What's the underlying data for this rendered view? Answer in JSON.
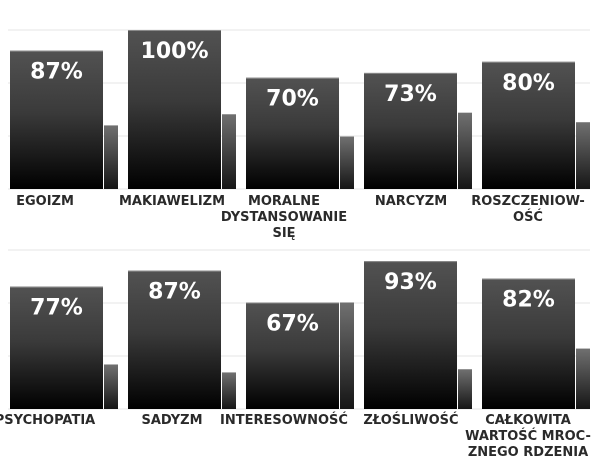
{
  "chart_data": [
    {
      "type": "bar",
      "categories": [
        [
          "EGOIZM"
        ],
        [
          "MAKIAWELIZM"
        ],
        [
          "MORALNE",
          "DYSTANSOWANIE",
          "SIĘ"
        ],
        [
          "NARCYZM"
        ],
        [
          "ROSZCZENIOW-",
          "OŚĆ"
        ]
      ],
      "values": [
        87,
        100,
        70,
        73,
        80
      ],
      "data_labels": [
        "87%",
        "100%",
        "70%",
        "73%",
        "80%"
      ],
      "secondary_values": [
        40,
        47,
        33,
        48,
        42
      ],
      "ylim": [
        0,
        100
      ],
      "grid": true,
      "colors": {
        "primary_top": "#525252",
        "primary_bottom": "#000000",
        "secondary_top": "#6b6b6b",
        "secondary_bottom": "#111111"
      }
    },
    {
      "type": "bar",
      "categories": [
        [
          "PSYCHOPATIA"
        ],
        [
          "SADYZM"
        ],
        [
          "INTERESOWNOŚĆ"
        ],
        [
          "ZŁOŚLIWOŚĆ"
        ],
        [
          "CAŁKOWITA",
          "WARTOŚĆ MROC-",
          "ZNEGO RDZENIA"
        ]
      ],
      "values": [
        77,
        87,
        67,
        93,
        82
      ],
      "data_labels": [
        "77%",
        "87%",
        "67%",
        "93%",
        "82%"
      ],
      "secondary_values": [
        28,
        23,
        67,
        25,
        38
      ],
      "ylim": [
        0,
        100
      ],
      "grid": true,
      "colors": {
        "primary_top": "#525252",
        "primary_bottom": "#000000",
        "secondary_top": "#6b6b6b",
        "secondary_bottom": "#111111"
      }
    }
  ]
}
